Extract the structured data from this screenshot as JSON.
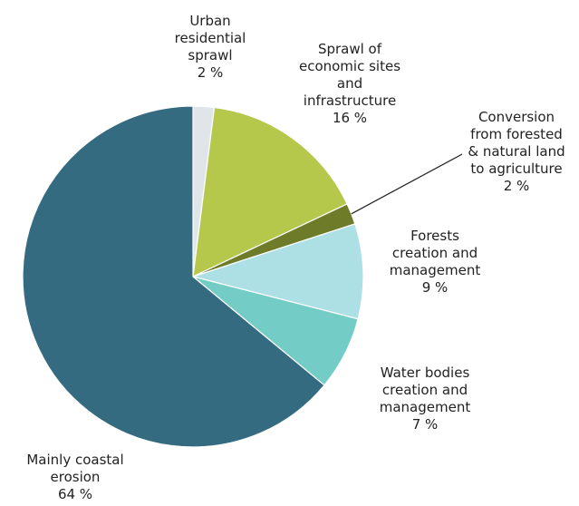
{
  "chart_data": {
    "type": "pie",
    "title": "",
    "slices": [
      {
        "name": "Urban residential sprawl",
        "label_lines": [
          "Urban",
          "residential",
          "sprawl"
        ],
        "pct_label": "2 %",
        "value": 2,
        "color": "#dfe5e8"
      },
      {
        "name": "Sprawl of economic sites and infrastructure",
        "label_lines": [
          "Sprawl of",
          "economic sites",
          "and",
          "infrastructure"
        ],
        "pct_label": "16 %",
        "value": 16,
        "color": "#b5c84b"
      },
      {
        "name": "Conversion from forested & natural land to agriculture",
        "label_lines": [
          "Conversion",
          "from forested",
          "& natural land",
          "to agriculture"
        ],
        "pct_label": "2 %",
        "value": 2,
        "color": "#6e7c2a"
      },
      {
        "name": "Forests creation and management",
        "label_lines": [
          "Forests",
          "creation and",
          "management"
        ],
        "pct_label": "9 %",
        "value": 9,
        "color": "#ade0e5"
      },
      {
        "name": "Water bodies creation and management",
        "label_lines": [
          "Water bodies",
          "creation and",
          "management"
        ],
        "pct_label": "7 %",
        "value": 7,
        "color": "#74ccc6"
      },
      {
        "name": "Mainly coastal erosion",
        "label_lines": [
          "Mainly coastal",
          "erosion"
        ],
        "pct_label": "64 %",
        "value": 64,
        "color": "#356b80"
      }
    ]
  }
}
